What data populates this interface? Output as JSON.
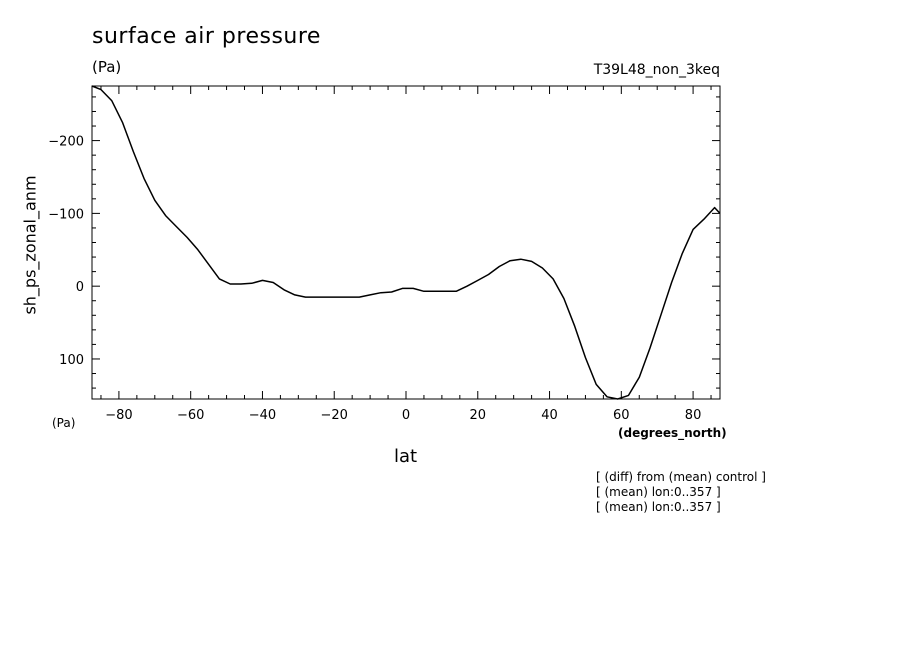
{
  "header": {
    "title": "surface air pressure",
    "units": "(Pa)",
    "run_id": "T39L48_non_3keq"
  },
  "axes": {
    "x_label": "lat",
    "x_unit_left": "(Pa)",
    "x_unit_right": "(degrees_north)",
    "y_label": "sh_ps_zonal_anm"
  },
  "notes": [
    "[ (diff) from (mean) control ]",
    "[ (mean) lon:0..357 ]",
    "[ (mean) lon:0..357 ]"
  ],
  "chart_data": {
    "type": "line",
    "title": "surface air pressure",
    "xlabel": "lat",
    "ylabel": "sh_ps_zonal_anm",
    "xlim": [
      -87.5,
      87.5
    ],
    "ylim": [
      155,
      -275
    ],
    "y_inverted": true,
    "grid": false,
    "x_ticks": [
      -80,
      -60,
      -40,
      -20,
      0,
      20,
      40,
      60,
      80
    ],
    "x_tick_labels": [
      "-80",
      "-60",
      "-40",
      "-20",
      "0",
      "20",
      "40",
      "60",
      "80"
    ],
    "y_ticks": [
      -200,
      -100,
      0,
      100
    ],
    "y_tick_labels": [
      "-200",
      "-100",
      "0",
      "100"
    ],
    "series": [
      {
        "x": [
          -87.5,
          -85,
          -82,
          -79,
          -76,
          -73,
          -70,
          -67,
          -64,
          -61,
          -58,
          -55,
          -52,
          -49,
          -46,
          -43,
          -40,
          -37,
          -34,
          -31,
          -28,
          -25,
          -22,
          -19,
          -16,
          -13,
          -10,
          -7,
          -4,
          -1,
          2,
          5,
          8,
          11,
          14,
          17,
          20,
          23,
          26,
          29,
          32,
          35,
          38,
          41,
          44,
          47,
          50,
          53,
          56,
          59,
          62,
          65,
          68,
          71,
          74,
          77,
          80,
          83,
          86,
          87.5
        ],
        "y": [
          -275,
          -270,
          -255,
          -225,
          -185,
          -148,
          -118,
          -97,
          -82,
          -67,
          -50,
          -30,
          -10,
          -3,
          -3,
          -4,
          -8,
          -5,
          5,
          12,
          15,
          15,
          15,
          15,
          15,
          15,
          12,
          9,
          8,
          3,
          3,
          7,
          7,
          7,
          7,
          0,
          -8,
          -16,
          -27,
          -35,
          -37,
          -34,
          -25,
          -10,
          17,
          55,
          98,
          135,
          152,
          155,
          150,
          125,
          85,
          40,
          -5,
          -45,
          -78,
          -92,
          -108,
          -100
        ]
      }
    ]
  }
}
